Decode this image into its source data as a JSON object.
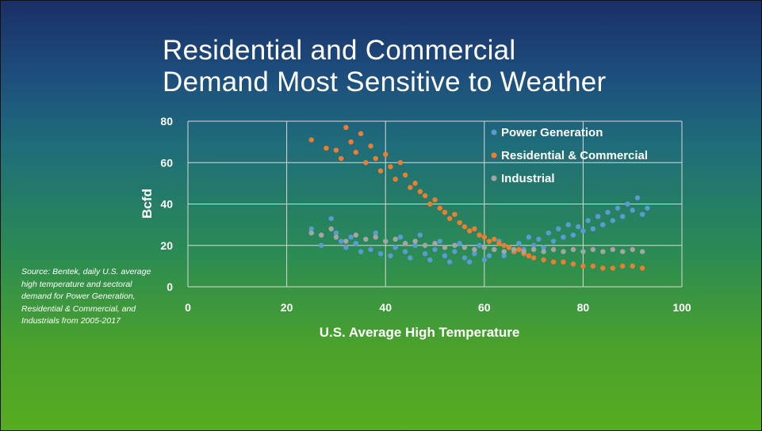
{
  "slide": {
    "title_line1": "Residential and Commercial",
    "title_line2": "Demand Most Sensitive to Weather",
    "source_note": "Source: Bentek, daily U.S. average high temperature and sectoral demand for Power Generation, Residential & Commercial, and Industrials from 2005-2017"
  },
  "colors": {
    "power": "#5b9bd5",
    "residential": "#ed7d31",
    "industrial": "#a5a5a5",
    "gridline": "#d9d9d9",
    "text": "#ffffff"
  },
  "chart_data": {
    "type": "scatter",
    "xlabel": "U.S. Average High Temperature",
    "ylabel": "Bcfd",
    "xlim": [
      0,
      100
    ],
    "ylim": [
      0,
      80
    ],
    "x_ticks": [
      "0",
      "20",
      "40",
      "60",
      "80",
      "100"
    ],
    "y_ticks": [
      "0",
      "20",
      "40",
      "60",
      "80"
    ],
    "grid": true,
    "legend_position": "top-right",
    "series": [
      {
        "name": "Power Generation",
        "color": "#5b9bd5",
        "points": [
          [
            25,
            28
          ],
          [
            27,
            20
          ],
          [
            29,
            33
          ],
          [
            30,
            26
          ],
          [
            31,
            22
          ],
          [
            32,
            19
          ],
          [
            33,
            24
          ],
          [
            34,
            21
          ],
          [
            35,
            17
          ],
          [
            36,
            23
          ],
          [
            37,
            18
          ],
          [
            38,
            26
          ],
          [
            39,
            16
          ],
          [
            40,
            22
          ],
          [
            41,
            15
          ],
          [
            42,
            19
          ],
          [
            43,
            24
          ],
          [
            44,
            17
          ],
          [
            45,
            14
          ],
          [
            46,
            20
          ],
          [
            47,
            25
          ],
          [
            48,
            16
          ],
          [
            49,
            13
          ],
          [
            50,
            18
          ],
          [
            51,
            22
          ],
          [
            52,
            15
          ],
          [
            53,
            12
          ],
          [
            54,
            17
          ],
          [
            55,
            21
          ],
          [
            56,
            14
          ],
          [
            57,
            12
          ],
          [
            58,
            16
          ],
          [
            59,
            20
          ],
          [
            60,
            13
          ],
          [
            61,
            15
          ],
          [
            62,
            18
          ],
          [
            63,
            22
          ],
          [
            64,
            15
          ],
          [
            65,
            19
          ],
          [
            66,
            17
          ],
          [
            67,
            21
          ],
          [
            68,
            18
          ],
          [
            69,
            24
          ],
          [
            70,
            20
          ],
          [
            71,
            23
          ],
          [
            72,
            19
          ],
          [
            73,
            26
          ],
          [
            74,
            22
          ],
          [
            75,
            28
          ],
          [
            76,
            24
          ],
          [
            77,
            30
          ],
          [
            78,
            25
          ],
          [
            79,
            29
          ],
          [
            80,
            27
          ],
          [
            81,
            32
          ],
          [
            82,
            28
          ],
          [
            83,
            34
          ],
          [
            84,
            30
          ],
          [
            85,
            36
          ],
          [
            86,
            32
          ],
          [
            87,
            38
          ],
          [
            88,
            34
          ],
          [
            89,
            40
          ],
          [
            90,
            37
          ],
          [
            91,
            43
          ],
          [
            92,
            35
          ],
          [
            93,
            38
          ]
        ]
      },
      {
        "name": "Residential & Commercial",
        "color": "#ed7d31",
        "points": [
          [
            25,
            71
          ],
          [
            28,
            67
          ],
          [
            30,
            66
          ],
          [
            31,
            62
          ],
          [
            32,
            77
          ],
          [
            33,
            70
          ],
          [
            34,
            65
          ],
          [
            35,
            74
          ],
          [
            36,
            60
          ],
          [
            37,
            68
          ],
          [
            38,
            62
          ],
          [
            39,
            56
          ],
          [
            40,
            64
          ],
          [
            41,
            58
          ],
          [
            42,
            52
          ],
          [
            43,
            60
          ],
          [
            44,
            54
          ],
          [
            45,
            48
          ],
          [
            46,
            50
          ],
          [
            47,
            46
          ],
          [
            48,
            44
          ],
          [
            49,
            40
          ],
          [
            50,
            42
          ],
          [
            51,
            38
          ],
          [
            52,
            36
          ],
          [
            53,
            33
          ],
          [
            54,
            35
          ],
          [
            55,
            31
          ],
          [
            56,
            29
          ],
          [
            57,
            27
          ],
          [
            58,
            28
          ],
          [
            59,
            25
          ],
          [
            60,
            24
          ],
          [
            61,
            22
          ],
          [
            62,
            23
          ],
          [
            63,
            21
          ],
          [
            64,
            20
          ],
          [
            65,
            19
          ],
          [
            66,
            17
          ],
          [
            67,
            18
          ],
          [
            68,
            16
          ],
          [
            69,
            15
          ],
          [
            70,
            14
          ],
          [
            72,
            13
          ],
          [
            74,
            12
          ],
          [
            76,
            12
          ],
          [
            78,
            11
          ],
          [
            80,
            10
          ],
          [
            82,
            10
          ],
          [
            84,
            9
          ],
          [
            86,
            9
          ],
          [
            88,
            10
          ],
          [
            90,
            10
          ],
          [
            92,
            9
          ]
        ]
      },
      {
        "name": "Industrial",
        "color": "#a5a5a5",
        "points": [
          [
            25,
            26
          ],
          [
            27,
            25
          ],
          [
            29,
            28
          ],
          [
            30,
            24
          ],
          [
            32,
            22
          ],
          [
            34,
            25
          ],
          [
            36,
            23
          ],
          [
            38,
            24
          ],
          [
            40,
            22
          ],
          [
            42,
            23
          ],
          [
            44,
            21
          ],
          [
            46,
            22
          ],
          [
            48,
            20
          ],
          [
            50,
            21
          ],
          [
            52,
            19
          ],
          [
            54,
            20
          ],
          [
            56,
            19
          ],
          [
            58,
            18
          ],
          [
            60,
            19
          ],
          [
            62,
            18
          ],
          [
            64,
            17
          ],
          [
            66,
            18
          ],
          [
            68,
            17
          ],
          [
            70,
            18
          ],
          [
            72,
            17
          ],
          [
            74,
            18
          ],
          [
            76,
            17
          ],
          [
            78,
            18
          ],
          [
            80,
            17
          ],
          [
            82,
            18
          ],
          [
            84,
            17
          ],
          [
            86,
            18
          ],
          [
            88,
            17
          ],
          [
            90,
            18
          ],
          [
            92,
            17
          ]
        ]
      }
    ]
  }
}
